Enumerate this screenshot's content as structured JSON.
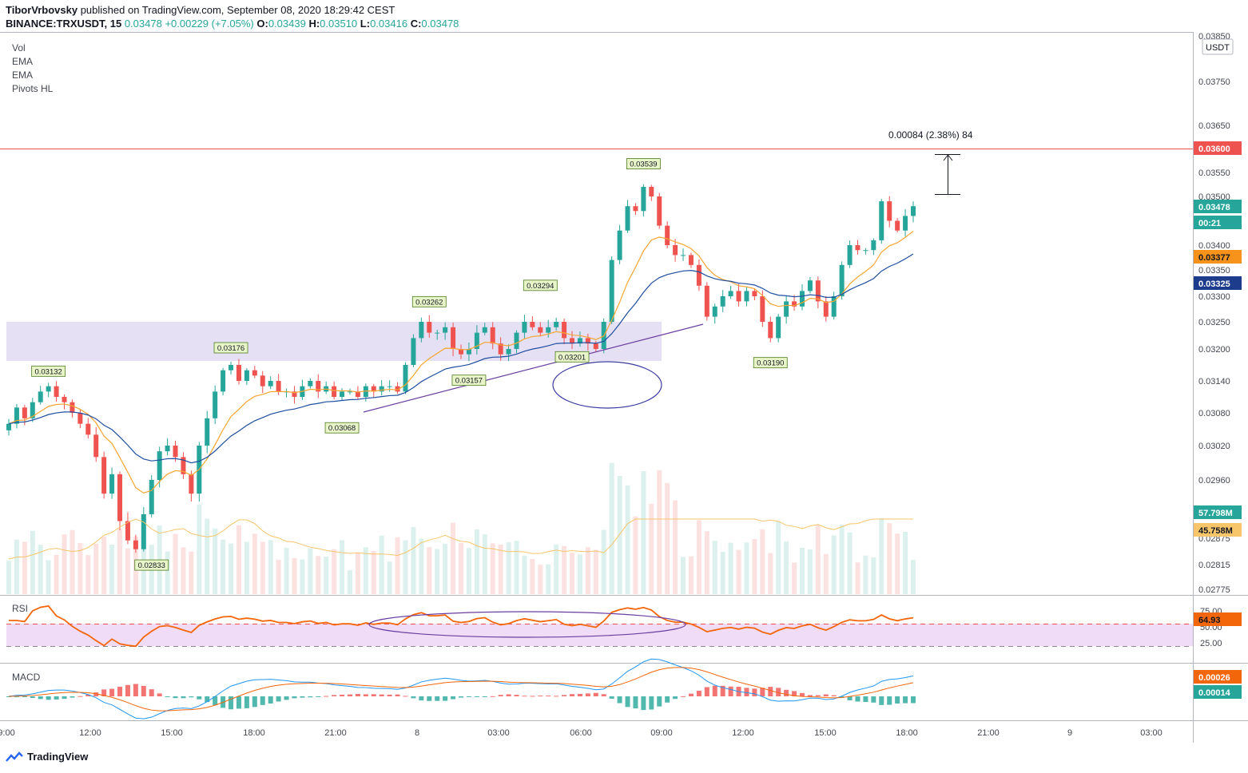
{
  "header": {
    "author": "TiborVrbovsky",
    "published": "published on TradingView.com, September 08, 2020 18:29:42 CEST",
    "symbol": "BINANCE:TRXUSDT, 15",
    "last": "0.03478",
    "change": "+0.00229 (+7.05%)",
    "o_label": "O:",
    "o": "0.03439",
    "h_label": "H:",
    "h": "0.03510",
    "l_label": "L:",
    "l": "0.03416",
    "c_label": "C:",
    "c": "0.03478"
  },
  "indicators": [
    "Vol",
    "EMA",
    "EMA",
    "Pivots HL"
  ],
  "currency": "USDT",
  "measure_label": "0.00084 (2.38%) 84",
  "colors": {
    "up": "#26a69a",
    "down": "#ef5350",
    "ema_fast": "#f7a530",
    "ema_slow": "#1e4ea0",
    "trend": "#6a3fa0",
    "resistance": "#ef5350",
    "zone": "#d9cff0",
    "rsi": "#f4660a"
  },
  "chart_data": [
    {
      "type": "candlestick",
      "symbol": "TRXUSDT",
      "interval": "15",
      "ylim": [
        0.0276,
        0.0379
      ],
      "y_ticks": [
        "0.03850",
        "0.03750",
        "0.03650",
        "0.03550",
        "0.03500",
        "0.03400",
        "0.03350",
        "0.03300",
        "0.03250",
        "0.03200",
        "0.03140",
        "0.03080",
        "0.03020",
        "0.02960",
        "0.02875",
        "0.02815",
        "0.02775"
      ],
      "x_ticks": [
        "9:00",
        "12:00",
        "15:00",
        "18:00",
        "21:00",
        "8",
        "03:00",
        "06:00",
        "09:00",
        "12:00",
        "15:00",
        "18:00",
        "21:00",
        "9",
        "03:00"
      ],
      "closes": [
        0.0306,
        0.0309,
        0.0307,
        0.031,
        0.0312,
        0.0313,
        0.0311,
        0.031,
        0.0308,
        0.0306,
        0.0304,
        0.03,
        0.0294,
        0.0297,
        0.029,
        0.0287,
        0.0285,
        0.0291,
        0.0296,
        0.0301,
        0.0302,
        0.03,
        0.0297,
        0.0294,
        0.0302,
        0.0307,
        0.0312,
        0.0316,
        0.0317,
        0.0314,
        0.0316,
        0.0315,
        0.0313,
        0.0314,
        0.0312,
        0.0312,
        0.0311,
        0.0313,
        0.0314,
        0.0312,
        0.0313,
        0.0311,
        0.0312,
        0.0312,
        0.0311,
        0.0313,
        0.0312,
        0.0313,
        0.0313,
        0.0312,
        0.0317,
        0.0322,
        0.0325,
        0.0323,
        0.0323,
        0.0324,
        0.032,
        0.0319,
        0.032,
        0.0323,
        0.0324,
        0.0321,
        0.0319,
        0.032,
        0.0323,
        0.0325,
        0.0324,
        0.0323,
        0.0324,
        0.0325,
        0.0322,
        0.0321,
        0.0322,
        0.0321,
        0.032,
        0.0325,
        0.0337,
        0.0343,
        0.0348,
        0.0347,
        0.0352,
        0.035,
        0.0344,
        0.034,
        0.0338,
        0.0338,
        0.0336,
        0.0332,
        0.0326,
        0.0328,
        0.033,
        0.0331,
        0.0329,
        0.0331,
        0.033,
        0.0325,
        0.0322,
        0.0326,
        0.0329,
        0.0328,
        0.0331,
        0.0333,
        0.0329,
        0.0326,
        0.033,
        0.0336,
        0.034,
        0.0339,
        0.0339,
        0.0341,
        0.0349,
        0.0345,
        0.0343,
        0.0346,
        0.0348
      ],
      "series": [
        {
          "name": "EMA",
          "last": "0.03377"
        },
        {
          "name": "EMA",
          "last": "0.03325"
        }
      ],
      "price_labels": [
        "0.03600",
        "0.03478",
        "00:21",
        "0.03377",
        "0.03325"
      ],
      "pivots": [
        {
          "label": "0.03132",
          "type": "high"
        },
        {
          "label": "0.03176",
          "type": "high"
        },
        {
          "label": "0.03262",
          "type": "high"
        },
        {
          "label": "0.03294",
          "type": "high"
        },
        {
          "label": "0.03539",
          "type": "high"
        },
        {
          "label": "0.02833",
          "type": "low"
        },
        {
          "label": "0.03068",
          "type": "low"
        },
        {
          "label": "0.03157",
          "type": "low"
        },
        {
          "label": "0.03201",
          "type": "low"
        },
        {
          "label": "0.03190",
          "type": "low"
        }
      ],
      "resistance": 0.036,
      "zone": [
        0.03175,
        0.03255
      ],
      "volume_labels": [
        "57.798M",
        "45.758M"
      ]
    },
    {
      "type": "line",
      "name": "RSI",
      "y_ticks": [
        "75.00",
        "50.00",
        "25.00"
      ],
      "last_label": "64.93",
      "band": [
        30,
        70
      ]
    },
    {
      "type": "bar",
      "name": "MACD",
      "y_labels": [
        "0.00026",
        "0.00014"
      ]
    }
  ],
  "footer": "TradingView"
}
